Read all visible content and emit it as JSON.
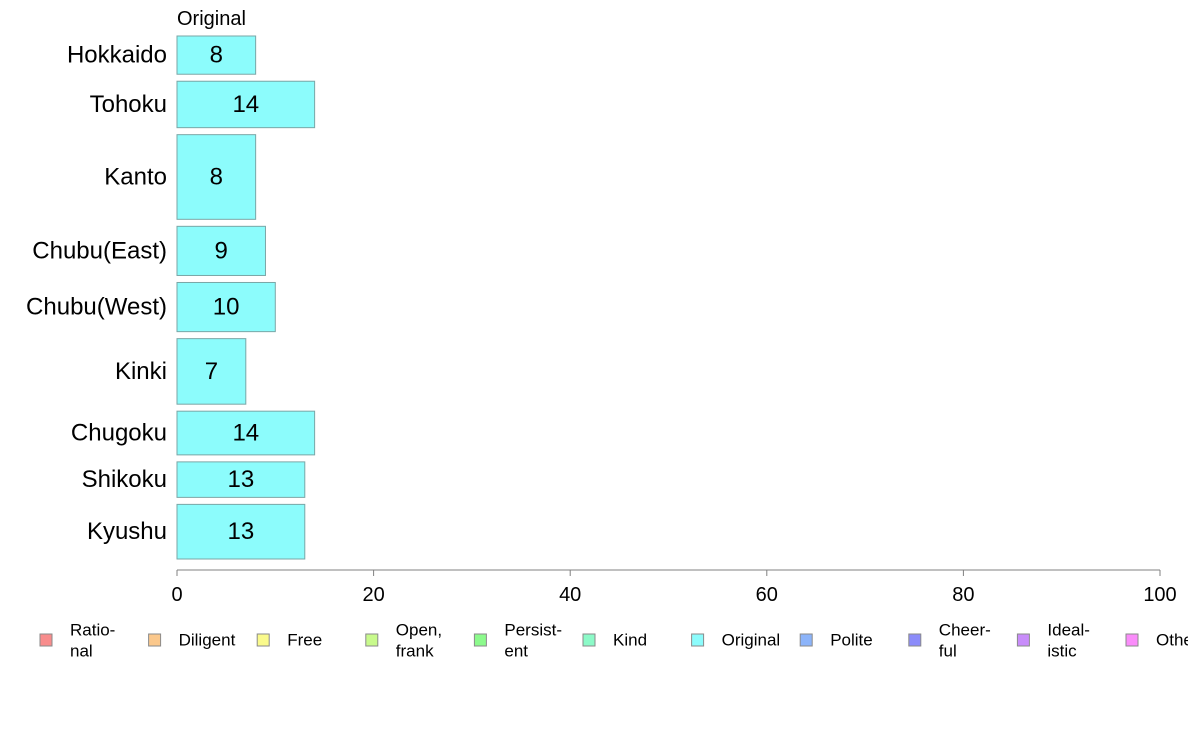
{
  "chart_data": {
    "type": "bar",
    "orientation": "horizontal",
    "variable_width": true,
    "series_header": "Original",
    "categories": [
      "Hokkaido",
      "Tohoku",
      "Kanto",
      "Chubu(East)",
      "Chubu(West)",
      "Kinki",
      "Chugoku",
      "Shikoku",
      "Kyushu"
    ],
    "values": [
      8,
      14,
      8,
      9,
      10,
      7,
      14,
      13,
      13
    ],
    "relative_bar_weight": [
      0.7,
      0.85,
      1.55,
      0.9,
      0.9,
      1.2,
      0.8,
      0.65,
      1.0
    ],
    "xlim": [
      0,
      100
    ],
    "xticks": [
      0,
      20,
      40,
      60,
      80,
      100
    ],
    "grid": false,
    "bar_color": "#8cfcfc",
    "bar_border": "#7aa6a6",
    "legend_placement": "bottom",
    "legend": [
      {
        "label": [
          "Ratio-",
          "nal"
        ],
        "color": "#f88c8c"
      },
      {
        "label": [
          "Diligent"
        ],
        "color": "#fbc88c"
      },
      {
        "label": [
          "Free"
        ],
        "color": "#fafa8c"
      },
      {
        "label": [
          "Open,",
          "frank"
        ],
        "color": "#c8fa8c"
      },
      {
        "label": [
          "Persist-",
          "ent"
        ],
        "color": "#8cfa8c"
      },
      {
        "label": [
          "Kind"
        ],
        "color": "#8cfac8"
      },
      {
        "label": [
          "Original"
        ],
        "color": "#8cfcfc"
      },
      {
        "label": [
          "Polite"
        ],
        "color": "#8cb4fa"
      },
      {
        "label": [
          "Cheer-",
          "ful"
        ],
        "color": "#8c8cfa"
      },
      {
        "label": [
          "Ideal-",
          "istic"
        ],
        "color": "#c88cfa"
      },
      {
        "label": [
          "Other"
        ],
        "color": "#fa8cfa"
      }
    ]
  }
}
